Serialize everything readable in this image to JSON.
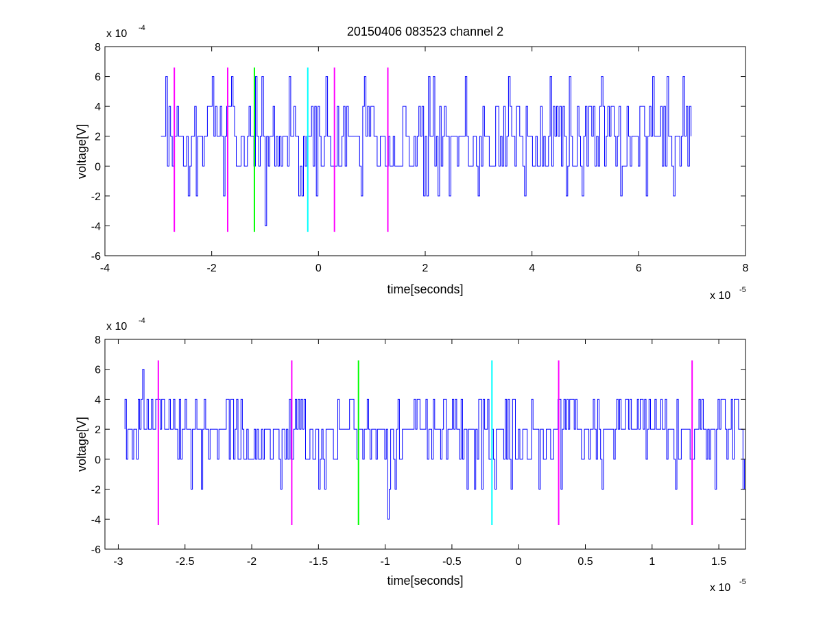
{
  "chart_data": [
    {
      "type": "line",
      "title": "20150406 083523 channel 2",
      "xlabel": "time[seconds]",
      "ylabel": "voltage[V]",
      "x_exponent_label": "x 10",
      "x_exponent": "-5",
      "y_exponent_label": "x 10",
      "y_exponent": "-4",
      "xlim": [
        -4,
        8
      ],
      "ylim": [
        -6,
        8
      ],
      "x_ticks": [
        "-4",
        "-2",
        "0",
        "2",
        "4",
        "6",
        "8"
      ],
      "y_ticks": [
        "-6",
        "-4",
        "-2",
        "0",
        "2",
        "4",
        "6",
        "8"
      ],
      "x_tick_values": [
        -4,
        -2,
        0,
        2,
        4,
        6,
        8
      ],
      "y_tick_values": [
        -6,
        -4,
        -2,
        0,
        2,
        4,
        6,
        8
      ],
      "signal": {
        "color": "#0000ff",
        "x_range": [
          -2.95,
          7.0
        ],
        "base_level": 2,
        "levels": [
          -2,
          0,
          2,
          4,
          6
        ],
        "peaks": [
          [
            -2.85,
            6
          ],
          [
            -1.78,
            6
          ],
          [
            -1.63,
            6
          ],
          [
            -1.18,
            6
          ],
          [
            0.13,
            6
          ],
          [
            0.85,
            6
          ],
          [
            2.05,
            6
          ],
          [
            2.75,
            6
          ],
          [
            3.55,
            6
          ],
          [
            5.3,
            6
          ],
          [
            6.25,
            6
          ]
        ],
        "dips": [
          [
            -2.45,
            -2
          ],
          [
            -2.3,
            -2
          ],
          [
            -1.78,
            -2
          ],
          [
            -1.0,
            -4
          ],
          [
            -0.3,
            -2
          ],
          [
            -0.05,
            -2
          ],
          [
            0.8,
            -2
          ],
          [
            2.25,
            -2
          ],
          [
            4.65,
            -2
          ],
          [
            6.15,
            -2
          ],
          [
            6.65,
            -2
          ]
        ]
      },
      "markers": [
        {
          "x": -2.7,
          "y1": -4.4,
          "y2": 6.6,
          "color": "#ff00ff"
        },
        {
          "x": -1.7,
          "y1": -4.4,
          "y2": 6.6,
          "color": "#ff00ff"
        },
        {
          "x": -1.2,
          "y1": -4.4,
          "y2": 6.6,
          "color": "#00ff00"
        },
        {
          "x": -0.2,
          "y1": -4.4,
          "y2": 6.6,
          "color": "#00ffff"
        },
        {
          "x": 0.3,
          "y1": -4.4,
          "y2": 6.6,
          "color": "#ff00ff"
        },
        {
          "x": 1.3,
          "y1": -4.4,
          "y2": 6.6,
          "color": "#ff00ff"
        }
      ]
    },
    {
      "type": "line",
      "title": "",
      "xlabel": "time[seconds]",
      "ylabel": "voltage[V]",
      "x_exponent_label": "x 10",
      "x_exponent": "-5",
      "y_exponent_label": "x 10",
      "y_exponent": "-4",
      "xlim": [
        -3.1,
        1.7
      ],
      "ylim": [
        -6,
        8
      ],
      "x_ticks": [
        "-3",
        "-2.5",
        "-2",
        "-1.5",
        "-1",
        "-0.5",
        "0",
        "0.5",
        "1",
        "1.5"
      ],
      "y_ticks": [
        "-6",
        "-4",
        "-2",
        "0",
        "2",
        "4",
        "6",
        "8"
      ],
      "x_tick_values": [
        -3,
        -2.5,
        -2,
        -1.5,
        -1,
        -0.5,
        0,
        0.5,
        1,
        1.5
      ],
      "y_tick_values": [
        -6,
        -4,
        -2,
        0,
        2,
        4,
        6,
        8
      ],
      "signal": {
        "color": "#0000ff",
        "x_range": [
          -2.95,
          1.7
        ],
        "base_level": 2,
        "levels": [
          -2,
          0,
          2,
          4,
          6
        ],
        "peaks": [
          [
            -2.82,
            6
          ],
          [
            -2.85,
            4
          ],
          [
            -2.45,
            4
          ],
          [
            -2.15,
            4
          ],
          [
            -1.65,
            4
          ],
          [
            -1.45,
            4
          ],
          [
            -0.9,
            4
          ],
          [
            -0.55,
            4
          ],
          [
            0.4,
            4
          ],
          [
            0.8,
            4
          ],
          [
            1.1,
            4
          ],
          [
            1.35,
            4
          ]
        ],
        "dips": [
          [
            -2.45,
            -2
          ],
          [
            -2.38,
            -2
          ],
          [
            -1.78,
            -2
          ],
          [
            -1.45,
            -2
          ],
          [
            -0.98,
            -4
          ],
          [
            -0.33,
            -2
          ],
          [
            -0.28,
            -2
          ],
          [
            -0.18,
            -2
          ],
          [
            0.15,
            -2
          ],
          [
            0.32,
            -2
          ],
          [
            0.63,
            -2
          ],
          [
            1.18,
            -2
          ]
        ]
      },
      "markers": [
        {
          "x": -2.7,
          "y1": -4.4,
          "y2": 6.6,
          "color": "#ff00ff"
        },
        {
          "x": -1.7,
          "y1": -4.4,
          "y2": 6.6,
          "color": "#ff00ff"
        },
        {
          "x": -1.2,
          "y1": -4.4,
          "y2": 6.6,
          "color": "#00ff00"
        },
        {
          "x": -0.2,
          "y1": -4.4,
          "y2": 6.6,
          "color": "#00ffff"
        },
        {
          "x": 0.3,
          "y1": -4.4,
          "y2": 6.6,
          "color": "#ff00ff"
        },
        {
          "x": 1.3,
          "y1": -4.4,
          "y2": 6.6,
          "color": "#ff00ff"
        }
      ]
    }
  ]
}
